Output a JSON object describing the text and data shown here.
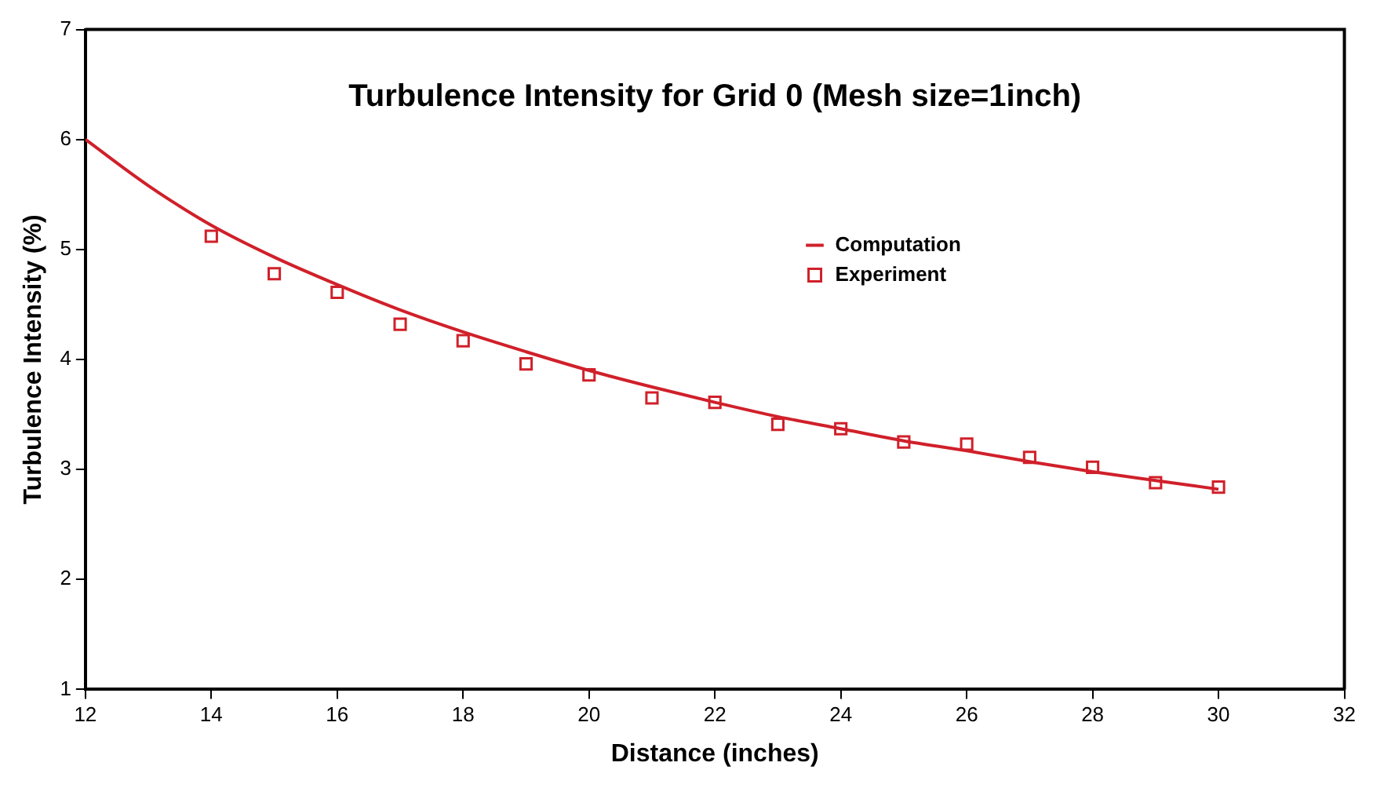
{
  "chart_data": {
    "type": "line",
    "title": "Turbulence Intensity for Grid 0 (Mesh size=1inch)",
    "xlabel": "Distance (inches)",
    "ylabel": "Turbulence Intensity (%)",
    "xlim": [
      12,
      32
    ],
    "xticks": [
      12,
      14,
      16,
      18,
      20,
      22,
      24,
      26,
      28,
      30,
      32
    ],
    "ylim": [
      1,
      7
    ],
    "yticks": [
      1,
      2,
      3,
      4,
      5,
      6,
      7
    ],
    "grid": false,
    "legend": "top right",
    "series": [
      {
        "name": "Computation",
        "color": "#d0202a",
        "marker": "none",
        "line_style": "solid",
        "x": [
          12,
          13,
          14,
          15,
          16,
          17,
          18,
          19,
          20,
          21,
          22,
          23,
          24,
          25,
          26,
          27,
          28,
          29,
          30
        ],
        "values": [
          6.0,
          5.58,
          5.22,
          4.93,
          4.68,
          4.45,
          4.25,
          4.07,
          3.9,
          3.75,
          3.61,
          3.48,
          3.37,
          3.26,
          3.17,
          3.07,
          2.98,
          2.9,
          2.82
        ]
      },
      {
        "name": "Experiment",
        "type": "scatter",
        "color": "#d0202a",
        "marker": "square",
        "x": [
          14,
          15,
          16,
          17,
          18,
          19,
          20,
          21,
          22,
          23,
          24,
          25,
          26,
          27,
          28,
          29,
          30
        ],
        "values": [
          5.12,
          4.78,
          4.61,
          4.32,
          4.17,
          3.96,
          3.86,
          3.65,
          3.61,
          3.41,
          3.37,
          3.25,
          3.23,
          3.11,
          3.02,
          2.88,
          2.84
        ]
      }
    ]
  }
}
